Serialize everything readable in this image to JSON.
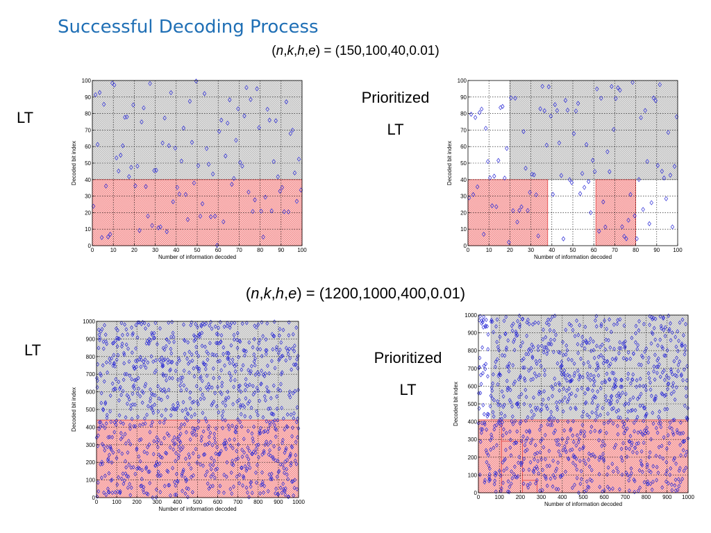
{
  "title": "Successful Decoding Process",
  "rows": [
    {
      "params_label": "(n,k,h,e) = (150,100,40,0.01)",
      "params_names": [
        "n",
        "k",
        "h",
        "e"
      ],
      "params_values": "= (150,100,40,0.01)"
    },
    {
      "params_label": "(n,k,h,e) = (1200,1000,400,0.01)",
      "params_names": [
        "n",
        "k",
        "h",
        "e"
      ],
      "params_values": "= (1200,1000,400,0.01)"
    }
  ],
  "labels": {
    "lt": "LT",
    "prioritized": "Prioritized",
    "prioritized_lt": "LT"
  },
  "colors": {
    "accent": "#1f6fb5",
    "point": "#2a2ad6",
    "gray_region": "#cfcfcf",
    "red_region": "#f7a6a6"
  },
  "chart_data": [
    {
      "type": "scatter",
      "title": "LT",
      "xlabel": "Number of information decoded",
      "ylabel": "Decoded bit index",
      "xlim": [
        0,
        100
      ],
      "ylim": [
        0,
        100
      ],
      "xticks": [
        0,
        10,
        20,
        30,
        40,
        50,
        60,
        70,
        80,
        90,
        100
      ],
      "yticks": [
        0,
        10,
        20,
        30,
        40,
        50,
        60,
        70,
        80,
        90,
        100
      ],
      "grid": true,
      "regions": [
        {
          "x": [
            0,
            100
          ],
          "y": [
            40,
            100
          ],
          "color": "gray"
        },
        {
          "x": [
            0,
            100
          ],
          "y": [
            0,
            40
          ],
          "color": "red"
        }
      ],
      "num_points": 100,
      "marker": "diamond"
    },
    {
      "type": "scatter",
      "title": "Prioritized LT",
      "xlabel": "Number of information decoded",
      "ylabel": "Decoded bit index",
      "xlim": [
        0,
        100
      ],
      "ylim": [
        0,
        100
      ],
      "xticks": [
        0,
        10,
        20,
        30,
        40,
        50,
        60,
        70,
        80,
        90,
        100
      ],
      "yticks": [
        0,
        10,
        20,
        30,
        40,
        50,
        60,
        70,
        80,
        90,
        100
      ],
      "grid": true,
      "regions": [
        {
          "x": [
            20,
            100
          ],
          "y": [
            40,
            100
          ],
          "color": "gray"
        },
        {
          "x": [
            0,
            38
          ],
          "y": [
            0,
            40
          ],
          "color": "red"
        },
        {
          "x": [
            61,
            80
          ],
          "y": [
            0,
            40
          ],
          "color": "red"
        }
      ],
      "num_points": 100,
      "marker": "diamond"
    },
    {
      "type": "scatter",
      "title": "LT",
      "xlabel": "Number of information decoded",
      "ylabel": "Decoded bit index",
      "xlim": [
        0,
        1000
      ],
      "ylim": [
        0,
        1000
      ],
      "xticks": [
        0,
        100,
        200,
        300,
        400,
        500,
        600,
        700,
        800,
        900,
        1000
      ],
      "yticks": [
        0,
        100,
        200,
        300,
        400,
        500,
        600,
        700,
        800,
        900,
        1000
      ],
      "grid": true,
      "regions": [
        {
          "x": [
            0,
            1000
          ],
          "y": [
            440,
            1000
          ],
          "color": "gray"
        },
        {
          "x": [
            0,
            1000
          ],
          "y": [
            0,
            440
          ],
          "color": "red"
        }
      ],
      "num_points": 1000,
      "marker": "diamond"
    },
    {
      "type": "scatter",
      "title": "Prioritized LT",
      "xlabel": "Number of information decoded",
      "ylabel": "Decoded bit index",
      "xlim": [
        0,
        1000
      ],
      "ylim": [
        0,
        1000
      ],
      "xticks": [
        0,
        100,
        200,
        300,
        400,
        500,
        600,
        700,
        800,
        900,
        1000
      ],
      "yticks": [
        0,
        100,
        200,
        300,
        400,
        500,
        600,
        700,
        800,
        900,
        1000
      ],
      "grid": true,
      "regions": [
        {
          "x": [
            60,
            1000
          ],
          "y": [
            410,
            1000
          ],
          "color": "gray"
        },
        {
          "x": [
            0,
            1000
          ],
          "y": [
            0,
            410
          ],
          "color": "red"
        },
        {
          "x": [
            0,
            110
          ],
          "y": [
            0,
            410
          ],
          "color": "red"
        },
        {
          "x": [
            110,
            210
          ],
          "y": [
            0,
            290
          ],
          "color": "red"
        },
        {
          "x": [
            210,
            280
          ],
          "y": [
            0,
            70
          ],
          "color": "red"
        }
      ],
      "num_points": 1000,
      "marker": "diamond"
    }
  ]
}
